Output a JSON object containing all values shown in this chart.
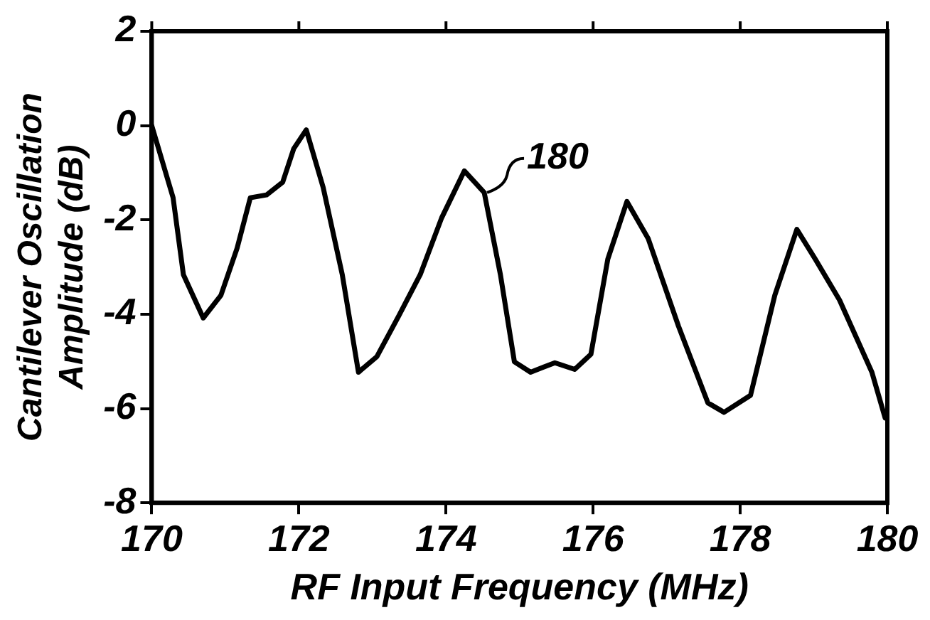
{
  "chart_data": {
    "type": "line",
    "xlabel": "RF Input Frequency (MHz)",
    "ylabel": "Cantilever Oscillation\nAmplitude (dB)",
    "xlim": [
      170,
      180
    ],
    "xticks": [
      170,
      172,
      174,
      176,
      178,
      180
    ],
    "ylim": [
      -8,
      2
    ],
    "yticks": [
      -8,
      -6,
      -4,
      -2,
      0,
      2
    ],
    "grid": false,
    "legend": false,
    "marker": "none",
    "line_style": "solid",
    "annotations": [
      {
        "text": "180",
        "x": 174.52,
        "y": -1.42
      }
    ],
    "series": [
      {
        "color": "#000000",
        "x": [
          170,
          170.29,
          170.43,
          170.7,
          170.94,
          171.16,
          171.34,
          171.56,
          171.78,
          171.93,
          172.1,
          172.33,
          172.59,
          172.81,
          173.06,
          173.36,
          173.65,
          173.94,
          174.25,
          174.52,
          174.74,
          174.93,
          175.15,
          175.48,
          175.75,
          175.97,
          176.2,
          176.46,
          176.75,
          177.16,
          177.56,
          177.78,
          178.14,
          178.47,
          178.77,
          179.02,
          179.35,
          179.79,
          179.97
        ],
        "values": [
          0,
          -1.53,
          -3.16,
          -4.08,
          -3.6,
          -2.6,
          -1.53,
          -1.47,
          -1.2,
          -0.49,
          -0.09,
          -1.31,
          -3.16,
          -5.23,
          -4.9,
          -4.03,
          -3.16,
          -1.96,
          -0.96,
          -1.42,
          -3.16,
          -5.01,
          -5.23,
          -5.03,
          -5.17,
          -4.85,
          -2.83,
          -1.61,
          -2.4,
          -4.25,
          -5.88,
          -6.08,
          -5.72,
          -3.6,
          -2.2,
          -2.83,
          -3.7,
          -5.23,
          -6.2
        ]
      }
    ]
  }
}
